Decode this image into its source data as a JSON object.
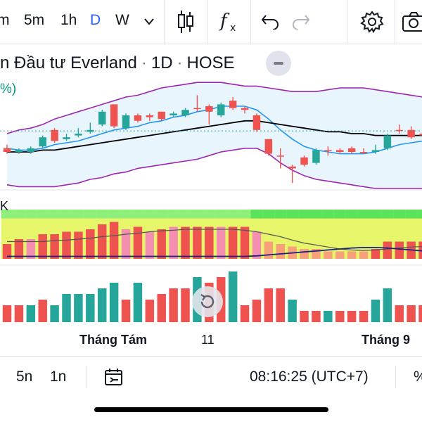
{
  "toolbar": {
    "timeframes": [
      {
        "label": "m",
        "active": false
      },
      {
        "label": "5m",
        "active": false
      },
      {
        "label": "1h",
        "active": false
      },
      {
        "label": "D",
        "active": true
      },
      {
        "label": "W",
        "active": false
      }
    ],
    "icons": [
      "chevron-down-icon",
      "candlestick-icon",
      "indicators-icon",
      "undo-icon",
      "redo-icon",
      "settings-icon",
      "camera-icon"
    ]
  },
  "symbol": {
    "name": "n Đầu tư Everland",
    "interval": "1D",
    "exchange": "HOSE",
    "change_fragment": "%)"
  },
  "indicator_pane": {
    "label_fragment": "K"
  },
  "time_axis": {
    "labels": [
      {
        "text": "Tháng Tám",
        "bold": true
      },
      {
        "text": "11",
        "bold": false
      },
      {
        "text": "Tháng 9",
        "bold": true
      }
    ]
  },
  "bottom_bar": {
    "ranges": [
      "5n",
      "1n"
    ],
    "time": "08:16:25 (UTC+7)",
    "pct_fragment": "%"
  },
  "colors": {
    "up": "#26a69a",
    "down": "#ef5350",
    "bb_band": "#9c27b0",
    "bb_fill": "#e3f2fd",
    "ma_blue": "#2196f3",
    "ma_black": "#000000",
    "accent": "#2962ff"
  },
  "chart_data": {
    "type": "candlestick",
    "note_axes": "price axis not visible; values in relative price units",
    "candles": [
      {
        "o": 22,
        "c": 20,
        "h": 24,
        "l": 19
      },
      {
        "o": 20,
        "c": 21,
        "h": 22,
        "l": 19
      },
      {
        "o": 20,
        "c": 22,
        "h": 23,
        "l": 19
      },
      {
        "o": 23,
        "c": 28,
        "h": 29,
        "l": 22
      },
      {
        "o": 32,
        "c": 26,
        "h": 33,
        "l": 25
      },
      {
        "o": 27,
        "c": 28,
        "h": 30,
        "l": 26
      },
      {
        "o": 29,
        "c": 30,
        "h": 33,
        "l": 28
      },
      {
        "o": 31,
        "c": 32,
        "h": 36,
        "l": 30
      },
      {
        "o": 35,
        "c": 42,
        "h": 43,
        "l": 34
      },
      {
        "o": 46,
        "c": 34,
        "h": 46,
        "l": 33
      },
      {
        "o": 33,
        "c": 40,
        "h": 41,
        "l": 32
      },
      {
        "o": 40,
        "c": 37,
        "h": 41,
        "l": 36
      },
      {
        "o": 40,
        "c": 39,
        "h": 41,
        "l": 37
      },
      {
        "o": 42,
        "c": 38,
        "h": 42,
        "l": 37
      },
      {
        "o": 40,
        "c": 41,
        "h": 42,
        "l": 39
      },
      {
        "o": 40,
        "c": 43,
        "h": 44,
        "l": 39
      },
      {
        "o": 44,
        "c": 44,
        "h": 51,
        "l": 42
      },
      {
        "o": 45,
        "c": 42,
        "h": 46,
        "l": 35
      },
      {
        "o": 40,
        "c": 46,
        "h": 47,
        "l": 39
      },
      {
        "o": 48,
        "c": 44,
        "h": 50,
        "l": 43
      },
      {
        "o": 44,
        "c": 43,
        "h": 45,
        "l": 41
      },
      {
        "o": 40,
        "c": 32,
        "h": 41,
        "l": 31
      },
      {
        "o": 27,
        "c": 19,
        "h": 27,
        "l": 18
      },
      {
        "o": 18,
        "c": 18,
        "h": 22,
        "l": 11
      },
      {
        "o": 12,
        "c": 11,
        "h": 13,
        "l": 3
      },
      {
        "o": 17,
        "c": 13,
        "h": 18,
        "l": 12
      },
      {
        "o": 14,
        "c": 21,
        "h": 22,
        "l": 13
      },
      {
        "o": 21,
        "c": 21,
        "h": 23,
        "l": 18
      },
      {
        "o": 21,
        "c": 20,
        "h": 22,
        "l": 19
      },
      {
        "o": 22,
        "c": 20,
        "h": 23,
        "l": 19
      },
      {
        "o": 20,
        "c": 20,
        "h": 22,
        "l": 19
      },
      {
        "o": 20,
        "c": 21,
        "h": 24,
        "l": 19
      },
      {
        "o": 22,
        "c": 29,
        "h": 30,
        "l": 21
      },
      {
        "o": 32,
        "c": 32,
        "h": 35,
        "l": 30
      },
      {
        "o": 32,
        "c": 28,
        "h": 34,
        "l": 27
      },
      {
        "o": 30,
        "c": 29,
        "h": 32,
        "l": 27
      }
    ],
    "bb_upper": [
      30,
      32,
      33,
      35,
      38,
      40,
      42,
      44,
      46,
      48,
      50,
      51,
      53,
      55,
      56,
      57,
      58,
      58,
      58,
      57,
      56,
      56,
      55,
      54,
      53,
      53,
      53,
      54,
      55,
      55,
      55,
      54,
      53,
      52,
      51,
      50
    ],
    "bb_lower": [
      2,
      1,
      1,
      1,
      1,
      2,
      3,
      5,
      6,
      8,
      9,
      11,
      12,
      13,
      14,
      15,
      16,
      18,
      20,
      21,
      22,
      22,
      19,
      14,
      10,
      7,
      5,
      4,
      3,
      2,
      1,
      0,
      0,
      0,
      0,
      0
    ],
    "ma_blue": [
      22,
      21,
      21,
      22,
      24,
      25,
      26,
      28,
      30,
      32,
      33,
      34,
      36,
      37,
      39,
      40,
      42,
      43,
      45,
      45,
      45,
      43,
      38,
      32,
      27,
      23,
      21,
      20,
      19,
      19,
      19,
      20,
      22,
      24,
      25,
      26
    ],
    "ma_black": [
      20,
      20,
      20,
      21,
      21,
      22,
      23,
      24,
      25,
      26,
      27,
      28,
      29,
      30,
      31,
      32,
      33,
      34,
      35,
      36,
      37,
      37,
      36,
      35,
      34,
      33,
      32,
      31,
      31,
      30,
      30,
      29,
      29,
      29,
      29,
      29
    ],
    "last_price_line": 31.5,
    "volume": [
      {
        "v": 3,
        "up": false
      },
      {
        "v": 3,
        "up": false
      },
      {
        "v": 3,
        "up": true
      },
      {
        "v": 4,
        "up": false
      },
      {
        "v": 3,
        "up": true
      },
      {
        "v": 5,
        "up": true
      },
      {
        "v": 5,
        "up": true
      },
      {
        "v": 5,
        "up": true
      },
      {
        "v": 6,
        "up": true
      },
      {
        "v": 7,
        "up": true
      },
      {
        "v": 4,
        "up": false
      },
      {
        "v": 7,
        "up": true
      },
      {
        "v": 4,
        "up": false
      },
      {
        "v": 5,
        "up": false
      },
      {
        "v": 6,
        "up": false
      },
      {
        "v": 6,
        "up": false
      },
      {
        "v": 8,
        "up": true
      },
      {
        "v": 7,
        "up": false
      },
      {
        "v": 8,
        "up": false
      },
      {
        "v": 9,
        "up": true
      },
      {
        "v": 3,
        "up": false
      },
      {
        "v": 4,
        "up": false
      },
      {
        "v": 6,
        "up": false
      },
      {
        "v": 6,
        "up": false
      },
      {
        "v": 4,
        "up": true
      },
      {
        "v": 2,
        "up": false
      },
      {
        "v": 2,
        "up": false
      },
      {
        "v": 2,
        "up": true
      },
      {
        "v": 2,
        "up": false
      },
      {
        "v": 2,
        "up": false
      },
      {
        "v": 2,
        "up": false
      },
      {
        "v": 4,
        "up": true
      },
      {
        "v": 6,
        "up": true
      },
      {
        "v": 3,
        "up": false
      },
      {
        "v": 3,
        "up": false
      },
      {
        "v": 3,
        "up": false
      }
    ],
    "osc_bar_levels": [
      0.3,
      0.4,
      0.4,
      0.5,
      0.5,
      0.55,
      0.55,
      0.6,
      0.7,
      0.75,
      0.6,
      0.65,
      0.55,
      0.6,
      0.65,
      0.65,
      0.65,
      0.65,
      0.65,
      0.65,
      0.65,
      0.55,
      0.35,
      0.3,
      0.25,
      0.2,
      0.2,
      0.15,
      0.15,
      0.15,
      0.15,
      0.2,
      0.35,
      0.35,
      0.35,
      0.35
    ],
    "osc_bar_colors": [
      "#ef5350",
      "#ef5350",
      "#f48fb1",
      "#ef5350",
      "#ef5350",
      "#ef5350",
      "#ef5350",
      "#ef5350",
      "#ef5350",
      "#ef5350",
      "#f48fb1",
      "#ef5350",
      "#f48fb1",
      "#ef5350",
      "#f48fb1",
      "#ef5350",
      "#ef5350",
      "#ef5350",
      "#f48fb1",
      "#ef5350",
      "#ef5350",
      "#f48fb1",
      "#f8a07a",
      "#f8a07a",
      "#f8a07a",
      "#f8a07a",
      "#f8a07a",
      "#f8a07a",
      "#f8a07a",
      "#f8a07a",
      "#f8a07a",
      "#ef5350",
      "#ef5350",
      "#ef5350",
      "#ef5350",
      "#ef5350"
    ],
    "osc_line_gray": [
      0.35,
      0.35,
      0.35,
      0.35,
      0.37,
      0.38,
      0.4,
      0.42,
      0.45,
      0.47,
      0.5,
      0.52,
      0.55,
      0.57,
      0.58,
      0.6,
      0.6,
      0.6,
      0.6,
      0.6,
      0.58,
      0.55,
      0.5,
      0.45,
      0.38,
      0.32,
      0.28,
      0.24,
      0.2,
      0.18,
      0.17,
      0.18,
      0.2,
      0.22,
      0.24,
      0.25
    ],
    "osc_line_blue": [
      0.05,
      0.05,
      0.05,
      0.05,
      0.05,
      0.05,
      0.05,
      0.05,
      0.05,
      0.05,
      0.05,
      0.05,
      0.05,
      0.05,
      0.05,
      0.05,
      0.05,
      0.05,
      0.05,
      0.05,
      0.05,
      0.06,
      0.08,
      0.1,
      0.12,
      0.14,
      0.16,
      0.18,
      0.2,
      0.22,
      0.23,
      0.23,
      0.22,
      0.2,
      0.18,
      0.16
    ]
  }
}
